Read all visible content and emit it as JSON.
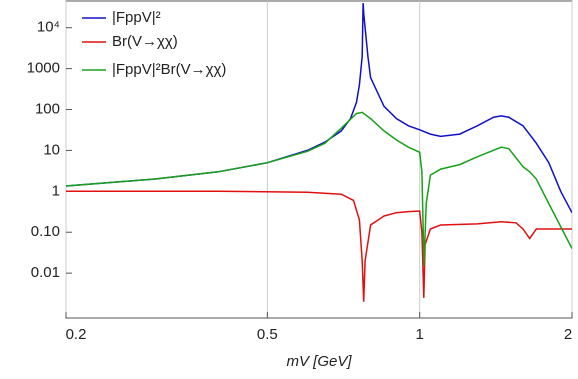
{
  "chart_data": {
    "type": "line",
    "x_label": "mV [GeV]",
    "xscale": "log",
    "yscale": "log",
    "xlim": [
      0.2,
      2
    ],
    "ylim": [
      0.0008,
      45000
    ],
    "xticks": [
      0.2,
      0.5,
      1,
      2
    ],
    "yticks": [
      {
        "value": 10000,
        "label": "10⁴"
      },
      1000,
      100,
      10,
      1,
      {
        "value": 0.1,
        "label": "0.10"
      },
      0.01
    ],
    "grid": true,
    "legend": "upper-left",
    "series": [
      {
        "name": "|FppV|²",
        "color": "#1010c8",
        "x": [
          0.2,
          0.3,
          0.4,
          0.5,
          0.6,
          0.65,
          0.7,
          0.73,
          0.75,
          0.76,
          0.77,
          0.773,
          0.776,
          0.79,
          0.8,
          0.85,
          0.9,
          0.95,
          1.0,
          1.05,
          1.1,
          1.2,
          1.3,
          1.4,
          1.45,
          1.5,
          1.6,
          1.7,
          1.8,
          1.9,
          2.0
        ],
        "values": [
          1.35,
          2.0,
          3.0,
          5.0,
          10,
          16,
          30,
          60,
          150,
          400,
          2000,
          40000,
          20000,
          2000,
          600,
          120,
          60,
          40,
          32,
          25,
          22,
          25,
          40,
          65,
          70,
          65,
          40,
          15,
          5,
          1,
          0.3
        ]
      },
      {
        "name": "Br(V→χχ)",
        "color": "#e01010",
        "x": [
          0.2,
          0.4,
          0.6,
          0.7,
          0.74,
          0.76,
          0.77,
          0.775,
          0.78,
          0.8,
          0.85,
          0.9,
          0.95,
          1.0,
          1.01,
          1.019,
          1.025,
          1.05,
          1.1,
          1.3,
          1.45,
          1.55,
          1.6,
          1.65,
          1.7,
          2.0
        ],
        "values": [
          1,
          1,
          0.95,
          0.85,
          0.6,
          0.2,
          0.02,
          0.002,
          0.02,
          0.15,
          0.25,
          0.3,
          0.32,
          0.33,
          0.1,
          0.0025,
          0.05,
          0.12,
          0.15,
          0.16,
          0.18,
          0.17,
          0.12,
          0.07,
          0.12,
          0.12
        ]
      },
      {
        "name": "|FppV|²Br(V→χχ)",
        "color": "#18a018",
        "x": [
          0.2,
          0.3,
          0.4,
          0.5,
          0.6,
          0.65,
          0.7,
          0.75,
          0.77,
          0.8,
          0.85,
          0.9,
          0.95,
          1.0,
          1.01,
          1.02,
          1.03,
          1.05,
          1.1,
          1.2,
          1.3,
          1.45,
          1.5,
          1.6,
          1.65,
          1.7,
          1.8,
          2.0
        ],
        "values": [
          1.35,
          2.0,
          3.0,
          5.0,
          9.5,
          15,
          35,
          80,
          85,
          60,
          30,
          18,
          12,
          9,
          3,
          0.015,
          0.5,
          2.5,
          3.5,
          4.5,
          7,
          12,
          11,
          4,
          3,
          2,
          0.5,
          0.04
        ]
      }
    ]
  }
}
